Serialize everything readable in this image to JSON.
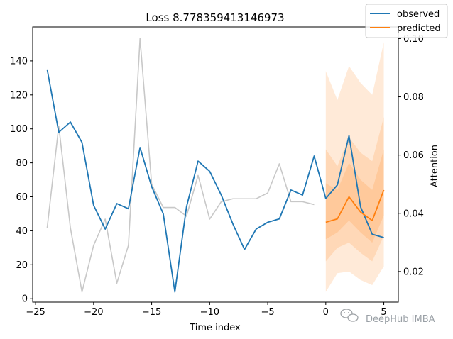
{
  "chart_data": {
    "type": "line",
    "title": "Loss 8.778359413146973",
    "xlabel": "Time index",
    "ylabel": "",
    "y2label": "Attention",
    "xlim": [
      -25.25,
      6.25
    ],
    "ylim": [
      -2,
      160
    ],
    "y2lim": [
      0.0095,
      0.104
    ],
    "xticks": [
      -25,
      -20,
      -15,
      -10,
      -5,
      0,
      5
    ],
    "xtick_labels": [
      "−25",
      "−20",
      "−15",
      "−10",
      "−5",
      "0",
      "5"
    ],
    "yticks": [
      0,
      20,
      40,
      60,
      80,
      100,
      120,
      140
    ],
    "y2ticks": [
      0.02,
      0.04,
      0.06,
      0.08,
      0.1
    ],
    "y2tick_labels": [
      "0.02",
      "0.04",
      "0.06",
      "0.08",
      "0.10"
    ],
    "grid": false,
    "legend": "top-right",
    "series": [
      {
        "name": "observed",
        "color": "#1f77b4",
        "x": [
          -24,
          -23,
          -22,
          -21,
          -20,
          -19,
          -18,
          -17,
          -16,
          -15,
          -14,
          -13,
          -12,
          -11,
          -10,
          -9,
          -8,
          -7,
          -6,
          -5,
          -4,
          -3,
          -2,
          -1,
          0,
          1,
          2,
          3,
          4,
          5
        ],
        "y": [
          135,
          98,
          104,
          92,
          55,
          41,
          56,
          53,
          89,
          66,
          50,
          4,
          54,
          81,
          75,
          61,
          44,
          29,
          41,
          45,
          47,
          64,
          61,
          84,
          59,
          67,
          96,
          54,
          38,
          36
        ]
      },
      {
        "name": "predicted",
        "color": "#ff7f0e",
        "x": [
          0,
          1,
          2,
          3,
          4,
          5
        ],
        "y": [
          45,
          47,
          60,
          51,
          46,
          64
        ]
      }
    ],
    "attention": {
      "color": "#c8c8c8",
      "x": [
        -24,
        -23,
        -22,
        -21,
        -20,
        -19,
        -18,
        -17,
        -16,
        -15,
        -14,
        -13,
        -12,
        -11,
        -10,
        -9,
        -8,
        -7,
        -6,
        -5,
        -4,
        -3,
        -2,
        -1
      ],
      "y": [
        0.035,
        0.07,
        0.035,
        0.013,
        0.029,
        0.038,
        0.016,
        0.029,
        0.1,
        0.05,
        0.042,
        0.042,
        0.039,
        0.053,
        0.038,
        0.044,
        0.045,
        0.045,
        0.045,
        0.047,
        0.057,
        0.044,
        0.044,
        0.043
      ]
    },
    "quantile_bands": {
      "color": "#ff7f0e",
      "x": [
        0,
        1,
        2,
        3,
        4,
        5
      ],
      "bands": [
        {
          "low": [
            4,
            15,
            16,
            11,
            8,
            19
          ],
          "high": [
            134,
            117,
            137,
            127,
            120,
            151
          ]
        },
        {
          "low": [
            22,
            30,
            33,
            27,
            22,
            37
          ],
          "high": [
            88,
            78,
            95,
            86,
            81,
            107
          ]
        },
        {
          "low": [
            35,
            39,
            46,
            39,
            33,
            49
          ],
          "high": [
            68,
            64,
            80,
            70,
            64,
            88
          ]
        }
      ]
    }
  },
  "watermark": {
    "text": "DeepHub IMBA",
    "icon": "wechat-icon"
  }
}
